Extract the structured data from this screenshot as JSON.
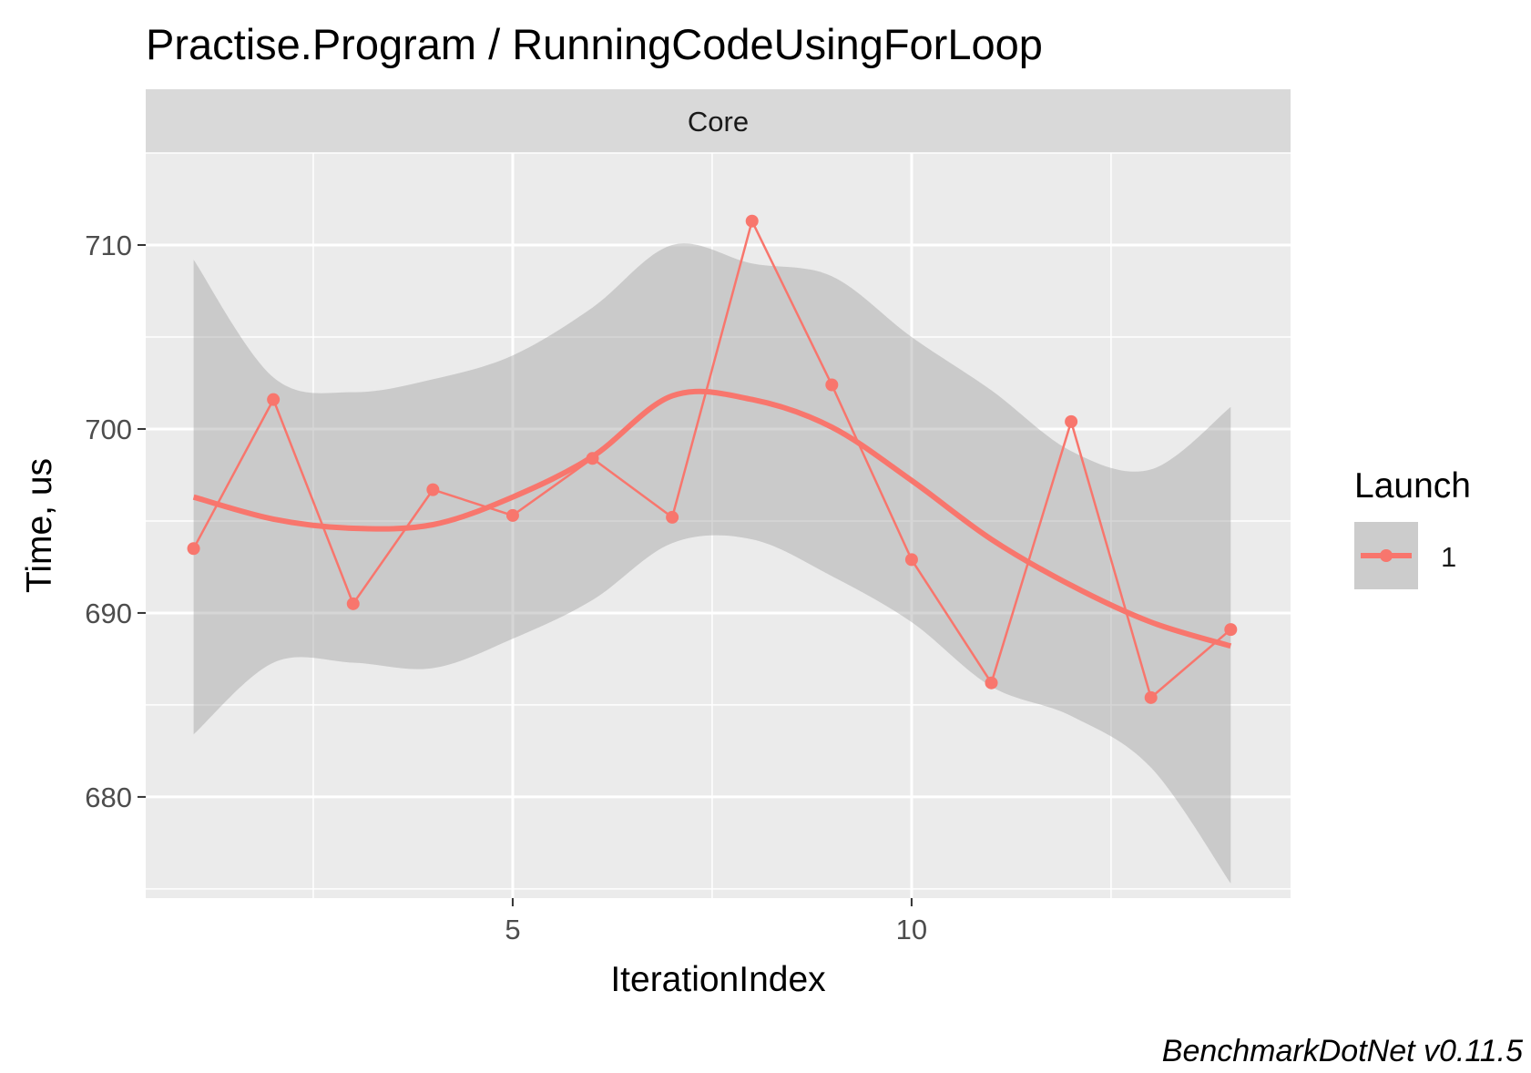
{
  "chart_data": {
    "type": "line",
    "title": "Practise.Program / RunningCodeUsingForLoop",
    "facet": "Core",
    "xlabel": "IterationIndex",
    "ylabel": "Time, us",
    "caption": "BenchmarkDotNet v0.11.5",
    "x_ticks": [
      5,
      10
    ],
    "y_ticks": [
      680,
      690,
      700,
      710
    ],
    "xlim": [
      0.4,
      14.75
    ],
    "ylim": [
      674.5,
      715.0
    ],
    "grid": true,
    "legend": {
      "title": "Launch",
      "position": "right",
      "entries": [
        "1"
      ]
    },
    "series": [
      {
        "name": "1",
        "color": "#F8766D",
        "x": [
          1,
          2,
          3,
          4,
          5,
          6,
          7,
          8,
          9,
          10,
          11,
          12,
          13,
          14
        ],
        "y": [
          693.5,
          701.6,
          690.5,
          696.7,
          695.3,
          698.4,
          695.2,
          711.3,
          702.4,
          692.9,
          686.2,
          700.4,
          685.4,
          689.1
        ]
      }
    ],
    "smooth": {
      "color": "#F8766D",
      "band_color": "#999999",
      "x": [
        1,
        2,
        3,
        4,
        5,
        6,
        7,
        8,
        9,
        10,
        11,
        12,
        13,
        14
      ],
      "y": [
        696.3,
        695.1,
        694.6,
        694.8,
        696.3,
        698.5,
        701.8,
        701.6,
        700.1,
        697.2,
        694.0,
        691.5,
        689.5,
        688.2
      ],
      "lower": [
        683.4,
        687.3,
        687.3,
        687.0,
        688.6,
        690.7,
        693.8,
        694.0,
        692.0,
        689.5,
        686.0,
        684.4,
        681.6,
        675.3
      ],
      "upper": [
        709.2,
        702.8,
        702.0,
        702.7,
        704.0,
        706.6,
        710.0,
        709.0,
        708.3,
        705.0,
        702.1,
        698.8,
        697.8,
        701.2
      ]
    }
  }
}
